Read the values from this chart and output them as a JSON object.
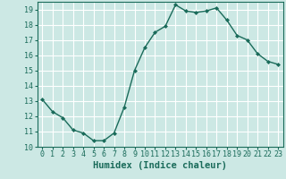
{
  "x": [
    0,
    1,
    2,
    3,
    4,
    5,
    6,
    7,
    8,
    9,
    10,
    11,
    12,
    13,
    14,
    15,
    16,
    17,
    18,
    19,
    20,
    21,
    22,
    23
  ],
  "y": [
    13.1,
    12.3,
    11.9,
    11.1,
    10.9,
    10.4,
    10.4,
    10.9,
    12.6,
    15.0,
    16.5,
    17.5,
    17.9,
    19.3,
    18.9,
    18.8,
    18.9,
    19.1,
    18.3,
    17.3,
    17.0,
    16.1,
    15.6,
    15.4
  ],
  "line_color": "#1a6b5a",
  "marker": "D",
  "marker_size": 2.0,
  "bg_color": "#cce8e4",
  "grid_color": "#ffffff",
  "xlabel": "Humidex (Indice chaleur)",
  "ylabel": "",
  "ylim": [
    10,
    19.5
  ],
  "xlim": [
    -0.5,
    23.5
  ],
  "yticks": [
    10,
    11,
    12,
    13,
    14,
    15,
    16,
    17,
    18,
    19
  ],
  "xticks": [
    0,
    1,
    2,
    3,
    4,
    5,
    6,
    7,
    8,
    9,
    10,
    11,
    12,
    13,
    14,
    15,
    16,
    17,
    18,
    19,
    20,
    21,
    22,
    23
  ],
  "tick_label_fontsize": 6,
  "xlabel_fontsize": 7.5,
  "line_width": 1.0
}
